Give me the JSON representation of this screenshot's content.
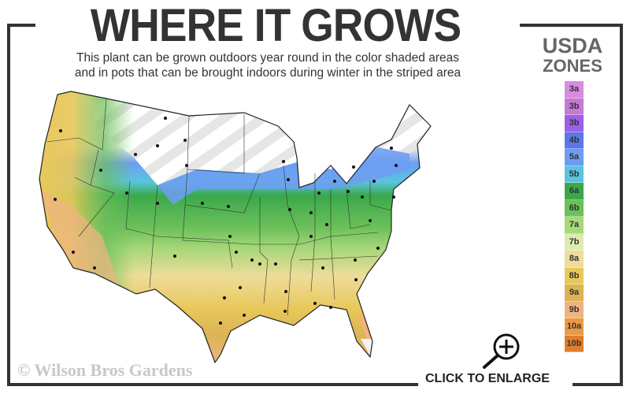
{
  "header": {
    "title": "WHERE IT GROWS",
    "subtitle_line1": "This plant can be grown outdoors year round in the color shaded areas",
    "subtitle_line2": "and in pots that can be brought indoors during winter in the striped area"
  },
  "legend": {
    "title_line1": "USDA",
    "title_line2": "ZONES",
    "zones": [
      {
        "label": "3a",
        "color": "#d98be0"
      },
      {
        "label": "3b",
        "color": "#c47ad6"
      },
      {
        "label": "3b",
        "color": "#9a62e6"
      },
      {
        "label": "4b",
        "color": "#5a78e6"
      },
      {
        "label": "5a",
        "color": "#6d9df2"
      },
      {
        "label": "5b",
        "color": "#5ac4e0"
      },
      {
        "label": "6a",
        "color": "#3aa84a"
      },
      {
        "label": "6b",
        "color": "#6cc05a"
      },
      {
        "label": "7a",
        "color": "#a8d87a"
      },
      {
        "label": "7b",
        "color": "#dcecb0"
      },
      {
        "label": "8a",
        "color": "#eedc9a"
      },
      {
        "label": "8b",
        "color": "#e8c85a"
      },
      {
        "label": "9a",
        "color": "#dcb456"
      },
      {
        "label": "9b",
        "color": "#f0b482"
      },
      {
        "label": "10a",
        "color": "#ea9a44"
      },
      {
        "label": "10b",
        "color": "#e07e2a"
      }
    ]
  },
  "map": {
    "striped_area": "winter indoors (pots)",
    "frame_color": "#333333"
  },
  "footer": {
    "copyright": "© Wilson Bros Gardens",
    "enlarge_label": "CLICK TO ENLARGE",
    "enlarge_icon": "zoom-in-magnifier-icon"
  }
}
